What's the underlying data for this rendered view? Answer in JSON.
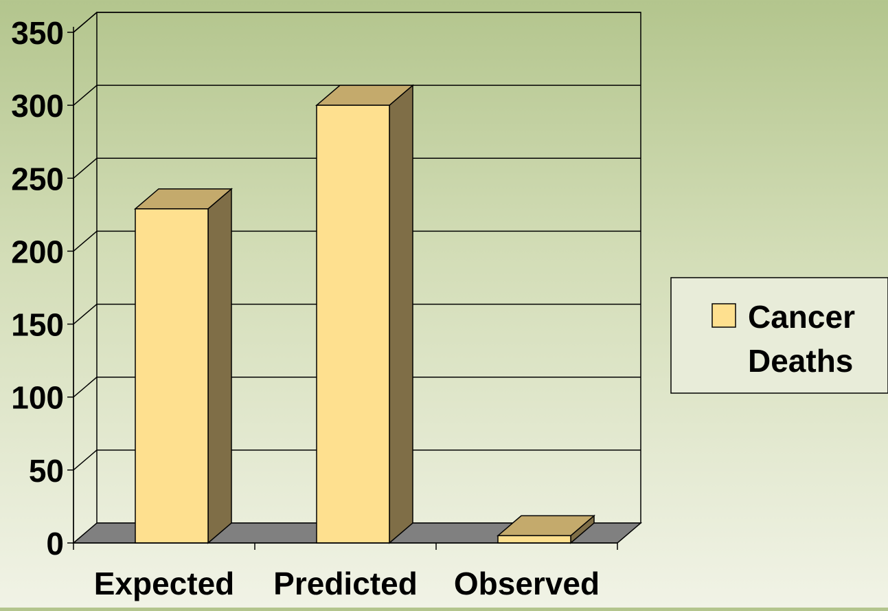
{
  "chart_data": {
    "type": "bar",
    "style": "3d",
    "categories": [
      "Expected",
      "Predicted",
      "Observed"
    ],
    "series": [
      {
        "name": "Cancer Deaths",
        "values": [
          229,
          300,
          5
        ]
      }
    ],
    "ylim": [
      0,
      350
    ],
    "yticks": [
      "0",
      "50",
      "100",
      "150",
      "200",
      "250",
      "300",
      "350"
    ],
    "grid": true,
    "legend": {
      "position": "right",
      "lines": [
        "Cancer",
        "Deaths"
      ]
    },
    "colors": {
      "bar_front": "#fee08f",
      "bar_top": "#c4aa6c",
      "bar_side": "#7f6e47",
      "floor": "#808080",
      "legend_bg": "#e8ecd9"
    }
  }
}
